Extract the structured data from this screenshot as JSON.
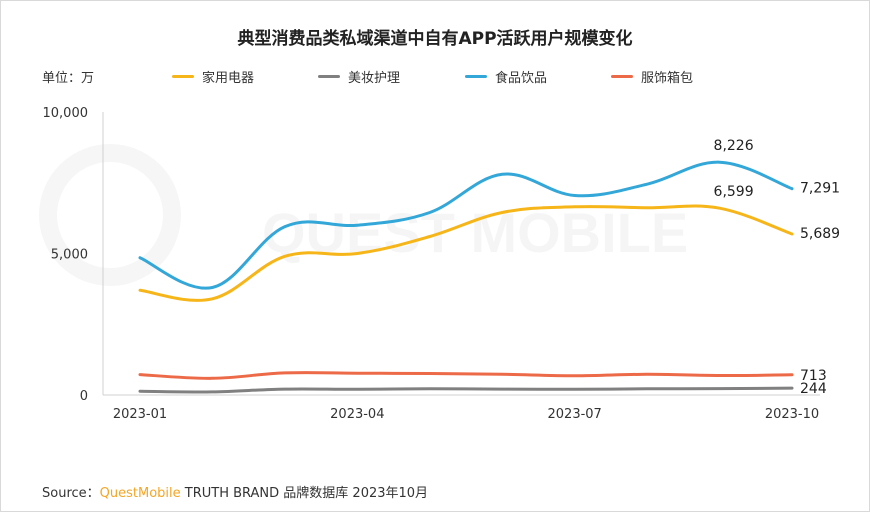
{
  "title": "典型消费品类私域渠道中自有APP活跃用户规模变化",
  "unit_label": "单位：万",
  "watermark": "QUEST MOBILE",
  "source": {
    "prefix": "Source：",
    "brand": "QuestMobile",
    "rest": " TRUTH BRAND 品牌数据库 2023年10月"
  },
  "chart_data": {
    "type": "line",
    "x": [
      "2023-01",
      "2023-02",
      "2023-03",
      "2023-04",
      "2023-05",
      "2023-06",
      "2023-07",
      "2023-08",
      "2023-09",
      "2023-10"
    ],
    "x_tick_labels": [
      "2023-01",
      "2023-04",
      "2023-07",
      "2023-10"
    ],
    "ylim": [
      0,
      10000
    ],
    "y_ticks": [
      0,
      5000,
      10000
    ],
    "y_tick_labels": [
      "0",
      "5,000",
      "10,000"
    ],
    "grid": false,
    "legend_position": "top",
    "series": [
      {
        "name": "家用电器",
        "color": "#f6b518",
        "values": [
          3700,
          3400,
          4900,
          5000,
          5600,
          6450,
          6650,
          6620,
          6599,
          5689
        ],
        "labels": [
          {
            "index": 8,
            "text": "6,599"
          },
          {
            "index": 9,
            "text": "5,689"
          }
        ]
      },
      {
        "name": "美妆护理",
        "color": "#808080",
        "values": [
          130,
          110,
          210,
          200,
          220,
          210,
          200,
          220,
          225,
          244
        ],
        "labels": [
          {
            "index": 9,
            "text": "244"
          }
        ]
      },
      {
        "name": "食品饮品",
        "color": "#33a7d8",
        "values": [
          4850,
          3800,
          5950,
          6000,
          6450,
          7800,
          7050,
          7450,
          8226,
          7291
        ],
        "labels": [
          {
            "index": 8,
            "text": "8,226"
          },
          {
            "index": 9,
            "text": "7,291"
          }
        ]
      },
      {
        "name": "服饰箱包",
        "color": "#ec6a48",
        "values": [
          720,
          590,
          780,
          770,
          760,
          730,
          680,
          730,
          690,
          713
        ],
        "labels": [
          {
            "index": 9,
            "text": "713"
          }
        ]
      }
    ]
  }
}
